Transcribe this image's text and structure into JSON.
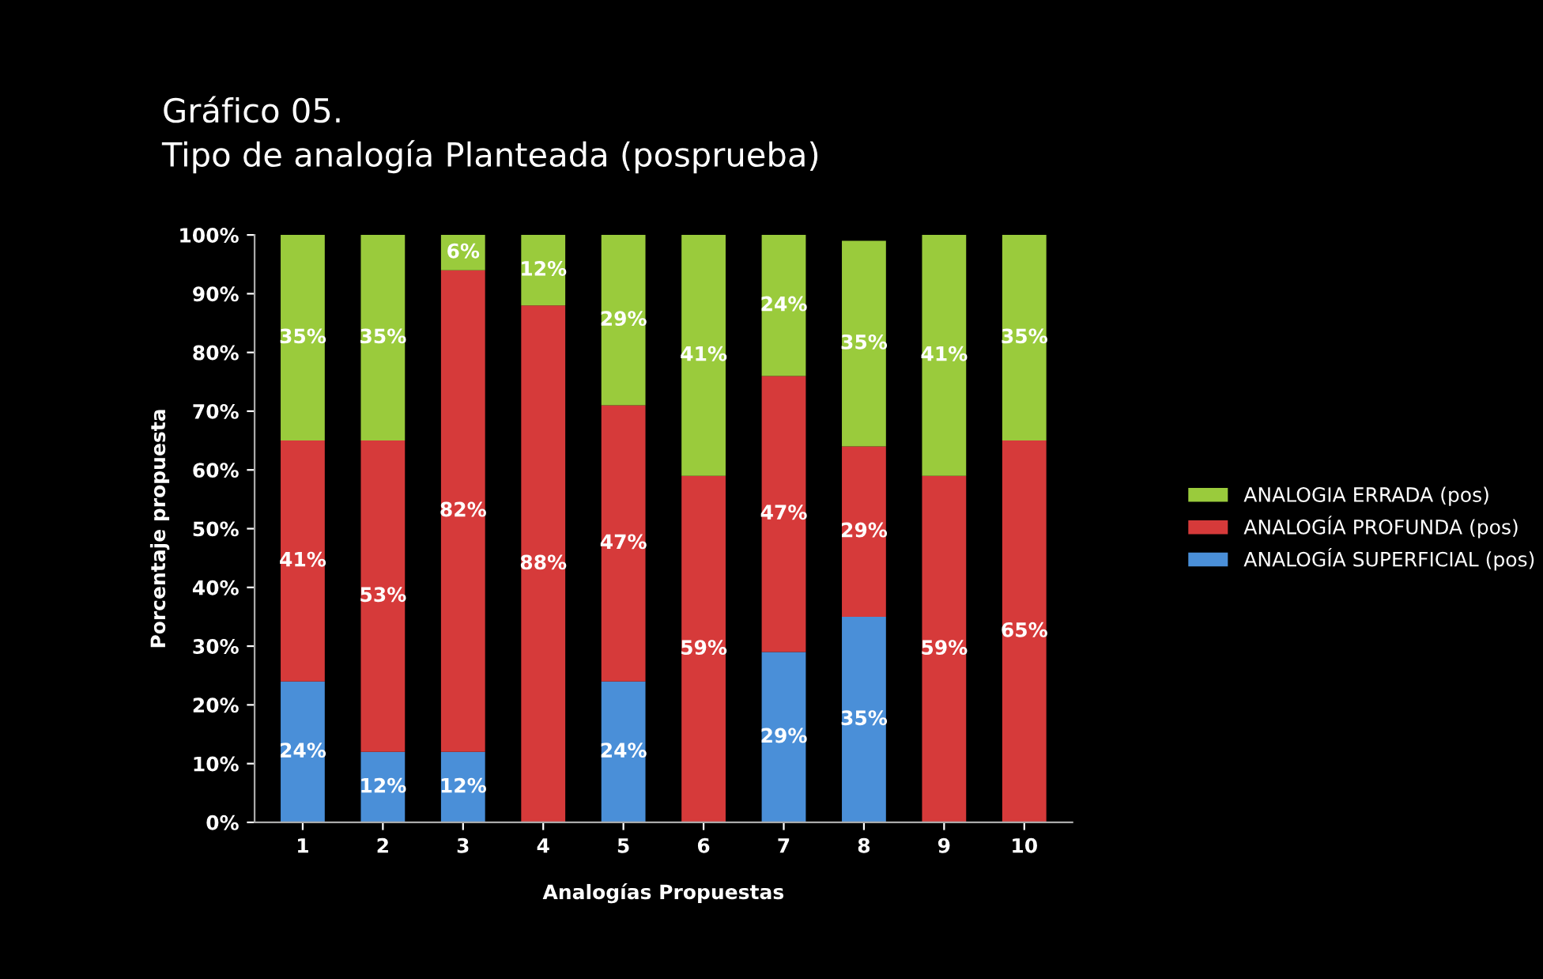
{
  "chart_data": {
    "type": "bar",
    "stacked": true,
    "title": "Gráfico 05.",
    "subtitle": "Tipo de analogía Planteada (posprueba)",
    "xlabel": "Analogías Propuestas",
    "ylabel": "Porcentaje propuesta",
    "categories": [
      "1",
      "2",
      "3",
      "4",
      "5",
      "6",
      "7",
      "8",
      "9",
      "10"
    ],
    "series": [
      {
        "name": "ANALOGÍA SUPERFICIAL (pos)",
        "color": "#4a8fd8",
        "values": [
          24,
          12,
          12,
          0,
          24,
          0,
          29,
          35,
          0,
          0
        ],
        "value_labels": [
          "24%",
          "12%",
          "12%",
          null,
          "24%",
          null,
          "29%",
          "35%",
          null,
          null
        ]
      },
      {
        "name": "ANALOGÍA PROFUNDA (pos)",
        "color": "#d63a3a",
        "values": [
          41,
          53,
          82,
          88,
          47,
          59,
          47,
          29,
          59,
          65
        ],
        "value_labels": [
          "41%",
          "53%",
          "82%",
          "88%",
          "47%",
          "59%",
          "47%",
          "29%",
          "59%",
          "65%"
        ]
      },
      {
        "name": "ANALOGIA ERRADA (pos)",
        "color": "#9acb3c",
        "values": [
          35,
          35,
          6,
          12,
          29,
          41,
          24,
          35,
          41,
          35
        ],
        "value_labels": [
          "35%",
          "35%",
          "6%",
          "12%",
          "29%",
          "41%",
          "24%",
          "35%",
          "41%",
          "35%"
        ]
      }
    ],
    "ylim": [
      0,
      100
    ],
    "yticks": [
      {
        "value": 0,
        "label": "0%"
      },
      {
        "value": 10,
        "label": "10%"
      },
      {
        "value": 20,
        "label": "20%"
      },
      {
        "value": 30,
        "label": "30%"
      },
      {
        "value": 40,
        "label": "40%"
      },
      {
        "value": 50,
        "label": "50%"
      },
      {
        "value": 60,
        "label": "60%"
      },
      {
        "value": 70,
        "label": "70%"
      },
      {
        "value": 80,
        "label": "80%"
      },
      {
        "value": 90,
        "label": "90%"
      },
      {
        "value": 100,
        "label": "100%"
      }
    ],
    "grid": false,
    "legend": "right"
  }
}
